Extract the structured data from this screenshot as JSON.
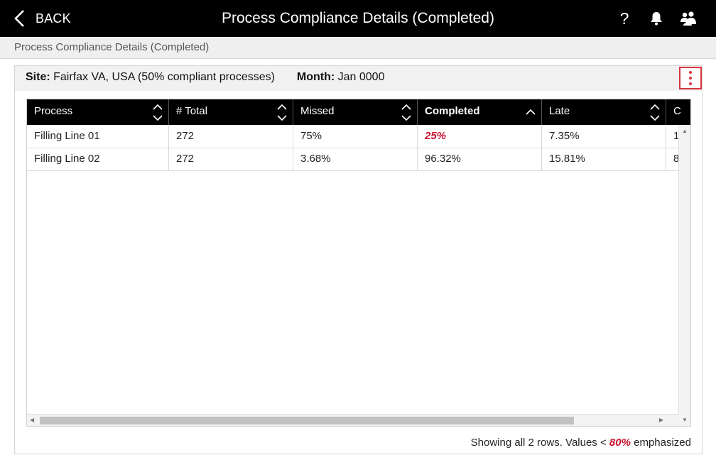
{
  "header": {
    "back_label": "BACK",
    "title": "Process Compliance Details (Completed)",
    "icons": [
      "help-icon",
      "bell-icon",
      "users-icon"
    ],
    "help_glyph": "?"
  },
  "breadcrumb": "Process Compliance Details (Completed)",
  "summary": {
    "site_label": "Site:",
    "site_value": "Fairfax VA, USA (50% compliant processes)",
    "month_label": "Month:",
    "month_value": "Jan 0000"
  },
  "table": {
    "columns": [
      {
        "label": "Process",
        "sort": "none"
      },
      {
        "label": "# Total",
        "sort": "none"
      },
      {
        "label": "Missed",
        "sort": "none"
      },
      {
        "label": "Completed",
        "sort": "asc"
      },
      {
        "label": "Late",
        "sort": "none"
      },
      {
        "label": "C",
        "sort": "none"
      }
    ],
    "rows": [
      {
        "cells": [
          "Filling Line 01",
          "272",
          "75%",
          "25%",
          "7.35%",
          "1"
        ],
        "emphasized": [
          3
        ]
      },
      {
        "cells": [
          "Filling Line 02",
          "272",
          "3.68%",
          "96.32%",
          "15.81%",
          "8"
        ],
        "emphasized": []
      }
    ]
  },
  "footer": {
    "prefix": "Showing all 2 rows. Values <",
    "threshold": "80%",
    "suffix": "emphasized"
  },
  "colors": {
    "accent": "#c8102e",
    "header_bg": "#000000",
    "kebab_border": "#d9363e"
  }
}
